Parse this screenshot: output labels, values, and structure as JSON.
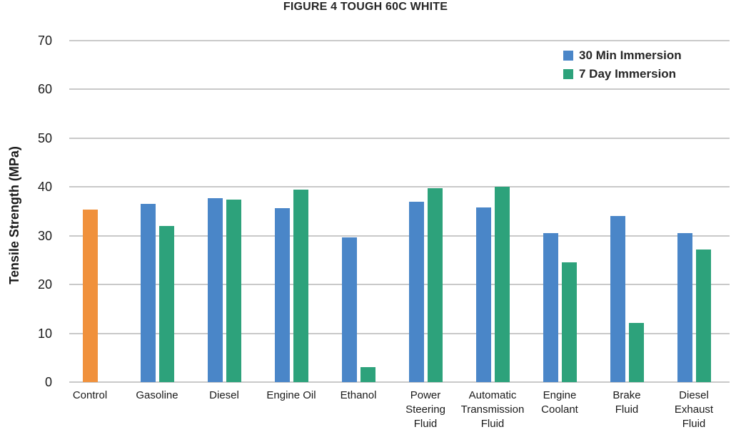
{
  "title": "FIGURE 4 TOUGH 60C WHITE",
  "legend": [
    {
      "label": "30 Min Immersion",
      "color": "#4A86C8"
    },
    {
      "label": "7 Day Immersion",
      "color": "#2DA27B"
    }
  ],
  "chart_data": {
    "type": "bar",
    "title": "FIGURE 4 TOUGH 60C WHITE",
    "xlabel": "",
    "ylabel": "Tensile Strength (MPa)",
    "ylim": [
      0,
      70
    ],
    "ytick_step": 10,
    "grid": true,
    "legend_position": "top-right",
    "categories": [
      "Control",
      "Gasoline",
      "Diesel",
      "Engine Oil",
      "Ethanol",
      "Power\nSteering\nFluid",
      "Automatic\nTransmission\nFluid",
      "Engine\nCoolant",
      "Brake\nFluid",
      "Diesel\nExhaust\nFluid"
    ],
    "series": [
      {
        "name": "30 Min Immersion",
        "color": "#4A86C8",
        "values": [
          null,
          36.5,
          37.7,
          35.6,
          29.6,
          37.0,
          35.8,
          30.5,
          34.0,
          30.5
        ]
      },
      {
        "name": "7 Day Immersion",
        "color": "#2DA27B",
        "values": [
          null,
          32.0,
          37.4,
          39.5,
          3.1,
          39.8,
          40.0,
          24.5,
          12.1,
          27.2
        ]
      }
    ],
    "control_bar": {
      "category": "Control",
      "category_index": 0,
      "value": 35.3,
      "color": "#F0913C"
    },
    "gridline_color": "#C9C9C9"
  }
}
